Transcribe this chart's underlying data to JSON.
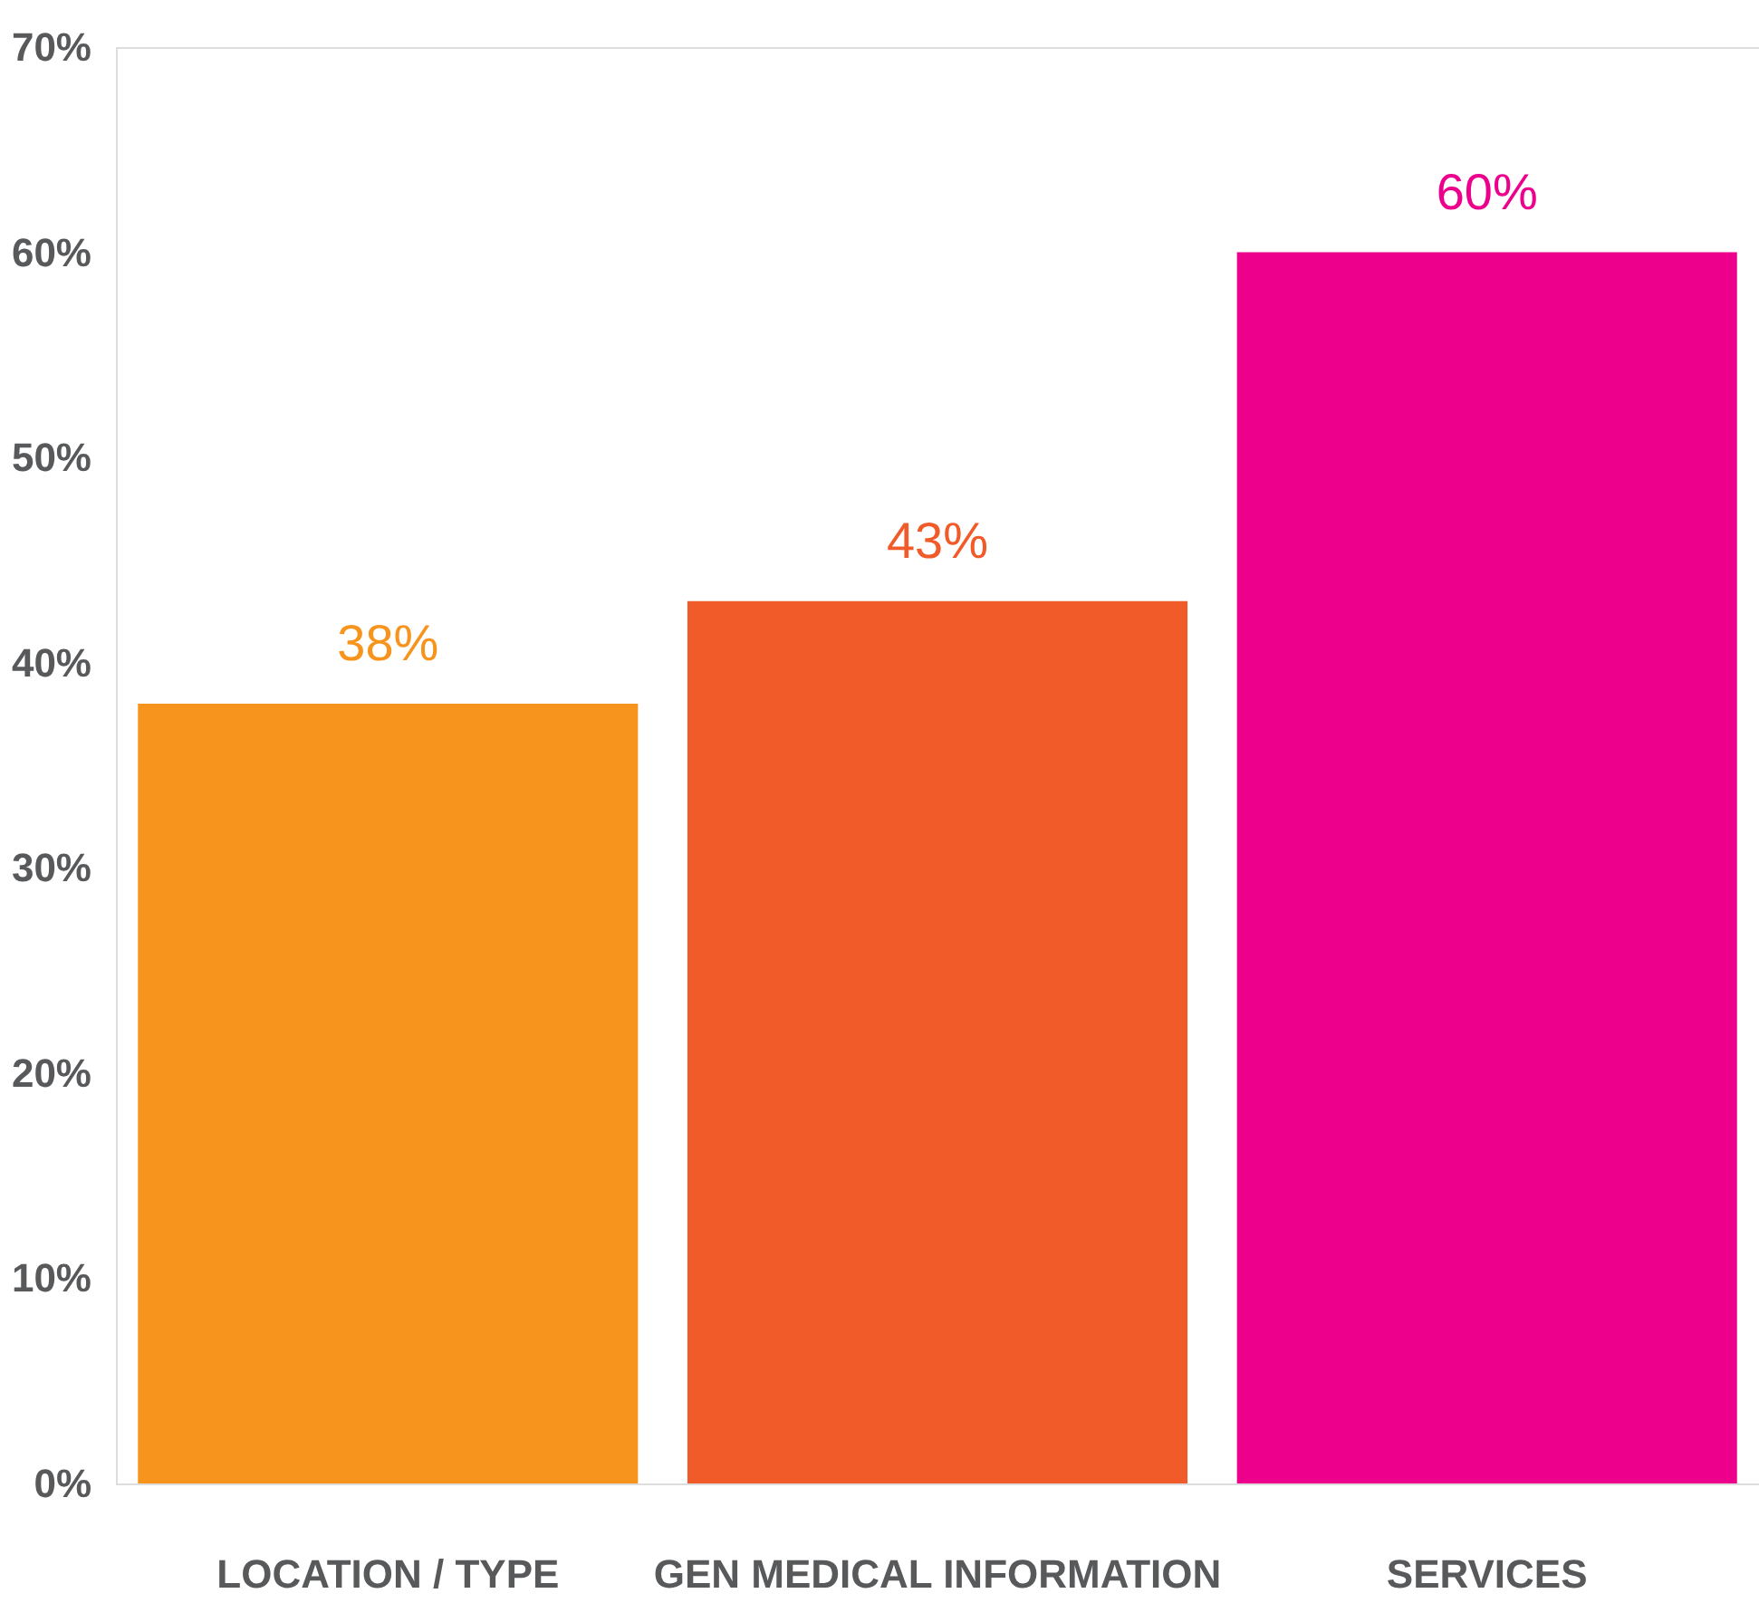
{
  "chart_data": {
    "type": "bar",
    "categories": [
      "LOCATION / TYPE",
      "GEN MEDICAL INFORMATION",
      "SERVICES"
    ],
    "values": [
      38,
      43,
      60
    ],
    "colors": [
      "#f7941d",
      "#f15a29",
      "#ec008c"
    ],
    "ylim": [
      0,
      70
    ],
    "yticks": [
      {
        "value": 0,
        "label": "0%"
      },
      {
        "value": 10,
        "label": "10%"
      },
      {
        "value": 20,
        "label": "20%"
      },
      {
        "value": 30,
        "label": "30%"
      },
      {
        "value": 40,
        "label": "40%"
      },
      {
        "value": 50,
        "label": "50%"
      },
      {
        "value": 60,
        "label": "60%"
      },
      {
        "value": 70,
        "label": "70%"
      }
    ],
    "value_labels": [
      "38%",
      "43%",
      "60%"
    ],
    "grid": false,
    "legend": false
  }
}
